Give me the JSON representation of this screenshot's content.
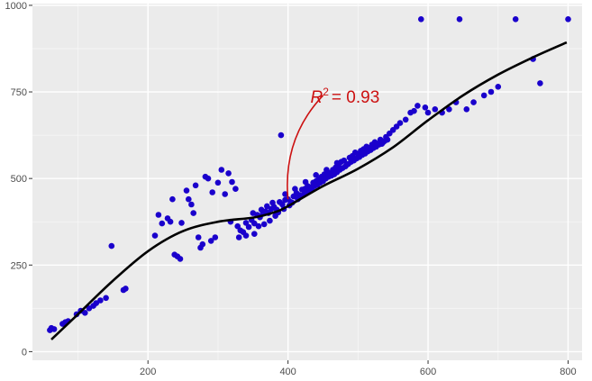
{
  "chart_data": {
    "type": "scatter",
    "title": "",
    "xlabel": "",
    "ylabel": "",
    "xlim": [
      35,
      820
    ],
    "ylim": [
      -25,
      1005
    ],
    "x_ticks": [
      200,
      400,
      600,
      800
    ],
    "y_ticks": [
      0,
      250,
      500,
      750,
      1000
    ],
    "grid": true,
    "point_color": "#1a00cc",
    "fit_color": "#000000",
    "annotation_color": "#cc1111",
    "panel_background": "#ebebeb",
    "annotation": {
      "text": "R² = 0.93",
      "symbol": "R",
      "superscript": "2",
      "equals": "= 0.93",
      "target": [
        400,
        440
      ],
      "label_at": [
        450,
        740
      ]
    },
    "points": [
      [
        60,
        62
      ],
      [
        62,
        68
      ],
      [
        66,
        65
      ],
      [
        78,
        80
      ],
      [
        82,
        85
      ],
      [
        86,
        88
      ],
      [
        98,
        108
      ],
      [
        104,
        118
      ],
      [
        110,
        112
      ],
      [
        116,
        125
      ],
      [
        122,
        132
      ],
      [
        126,
        140
      ],
      [
        132,
        148
      ],
      [
        140,
        155
      ],
      [
        148,
        305
      ],
      [
        165,
        178
      ],
      [
        168,
        182
      ],
      [
        210,
        335
      ],
      [
        215,
        395
      ],
      [
        220,
        370
      ],
      [
        228,
        385
      ],
      [
        232,
        375
      ],
      [
        235,
        440
      ],
      [
        238,
        280
      ],
      [
        242,
        275
      ],
      [
        246,
        268
      ],
      [
        248,
        372
      ],
      [
        255,
        465
      ],
      [
        258,
        440
      ],
      [
        262,
        425
      ],
      [
        265,
        400
      ],
      [
        268,
        480
      ],
      [
        272,
        330
      ],
      [
        275,
        300
      ],
      [
        278,
        310
      ],
      [
        282,
        505
      ],
      [
        286,
        500
      ],
      [
        290,
        320
      ],
      [
        292,
        460
      ],
      [
        296,
        330
      ],
      [
        300,
        488
      ],
      [
        305,
        525
      ],
      [
        310,
        455
      ],
      [
        315,
        515
      ],
      [
        318,
        375
      ],
      [
        320,
        490
      ],
      [
        325,
        470
      ],
      [
        328,
        362
      ],
      [
        332,
        350
      ],
      [
        336,
        345
      ],
      [
        340,
        372
      ],
      [
        344,
        360
      ],
      [
        348,
        380
      ],
      [
        352,
        370
      ],
      [
        356,
        395
      ],
      [
        360,
        388
      ],
      [
        364,
        398
      ],
      [
        368,
        405
      ],
      [
        372,
        400
      ],
      [
        376,
        412
      ],
      [
        380,
        418
      ],
      [
        384,
        410
      ],
      [
        388,
        432
      ],
      [
        390,
        625
      ],
      [
        392,
        425
      ],
      [
        396,
        438
      ],
      [
        400,
        440
      ],
      [
        404,
        432
      ],
      [
        408,
        448
      ],
      [
        412,
        458
      ],
      [
        416,
        452
      ],
      [
        420,
        468
      ],
      [
        424,
        470
      ],
      [
        428,
        478
      ],
      [
        432,
        475
      ],
      [
        436,
        488
      ],
      [
        440,
        492
      ],
      [
        444,
        498
      ],
      [
        448,
        505
      ],
      [
        452,
        512
      ],
      [
        456,
        520
      ],
      [
        460,
        515
      ],
      [
        464,
        525
      ],
      [
        468,
        532
      ],
      [
        472,
        540
      ],
      [
        476,
        548
      ],
      [
        480,
        552
      ],
      [
        484,
        540
      ],
      [
        488,
        560
      ],
      [
        492,
        565
      ],
      [
        496,
        575
      ],
      [
        500,
        570
      ],
      [
        504,
        580
      ],
      [
        508,
        585
      ],
      [
        512,
        592
      ],
      [
        516,
        588
      ],
      [
        520,
        598
      ],
      [
        524,
        605
      ],
      [
        528,
        600
      ],
      [
        532,
        612
      ],
      [
        536,
        605
      ],
      [
        540,
        620
      ],
      [
        545,
        630
      ],
      [
        550,
        640
      ],
      [
        555,
        650
      ],
      [
        560,
        660
      ],
      [
        568,
        670
      ],
      [
        575,
        690
      ],
      [
        580,
        695
      ],
      [
        585,
        710
      ],
      [
        590,
        960
      ],
      [
        596,
        705
      ],
      [
        600,
        690
      ],
      [
        610,
        700
      ],
      [
        620,
        690
      ],
      [
        630,
        700
      ],
      [
        640,
        720
      ],
      [
        645,
        960
      ],
      [
        655,
        700
      ],
      [
        665,
        720
      ],
      [
        680,
        740
      ],
      [
        690,
        750
      ],
      [
        700,
        765
      ],
      [
        725,
        960
      ],
      [
        750,
        845
      ],
      [
        760,
        775
      ],
      [
        800,
        960
      ],
      [
        330,
        330
      ],
      [
        340,
        335
      ],
      [
        352,
        340
      ],
      [
        358,
        362
      ],
      [
        366,
        368
      ],
      [
        374,
        378
      ],
      [
        382,
        392
      ],
      [
        386,
        402
      ],
      [
        394,
        412
      ],
      [
        402,
        422
      ],
      [
        406,
        430
      ],
      [
        414,
        440
      ],
      [
        418,
        448
      ],
      [
        422,
        452
      ],
      [
        426,
        460
      ],
      [
        430,
        465
      ],
      [
        434,
        470
      ],
      [
        438,
        478
      ],
      [
        442,
        482
      ],
      [
        446,
        488
      ],
      [
        450,
        492
      ],
      [
        454,
        500
      ],
      [
        458,
        505
      ],
      [
        462,
        508
      ],
      [
        466,
        512
      ],
      [
        470,
        518
      ],
      [
        474,
        525
      ],
      [
        478,
        530
      ],
      [
        482,
        535
      ],
      [
        486,
        542
      ],
      [
        490,
        548
      ],
      [
        494,
        552
      ],
      [
        498,
        558
      ],
      [
        502,
        562
      ],
      [
        506,
        568
      ],
      [
        510,
        572
      ],
      [
        514,
        578
      ],
      [
        518,
        582
      ],
      [
        522,
        588
      ],
      [
        526,
        592
      ],
      [
        530,
        598
      ],
      [
        534,
        600
      ],
      [
        538,
        608
      ],
      [
        542,
        612
      ],
      [
        350,
        400
      ],
      [
        362,
        410
      ],
      [
        370,
        420
      ],
      [
        378,
        430
      ],
      [
        396,
        455
      ],
      [
        410,
        470
      ],
      [
        425,
        490
      ],
      [
        440,
        510
      ],
      [
        455,
        525
      ],
      [
        470,
        545
      ]
    ],
    "fit_curve": [
      [
        62,
        35
      ],
      [
        100,
        108
      ],
      [
        150,
        205
      ],
      [
        200,
        290
      ],
      [
        250,
        348
      ],
      [
        300,
        375
      ],
      [
        350,
        387
      ],
      [
        380,
        402
      ],
      [
        400,
        420
      ],
      [
        450,
        478
      ],
      [
        500,
        528
      ],
      [
        550,
        590
      ],
      [
        600,
        668
      ],
      [
        650,
        740
      ],
      [
        700,
        800
      ],
      [
        750,
        850
      ],
      [
        798,
        893
      ]
    ]
  }
}
